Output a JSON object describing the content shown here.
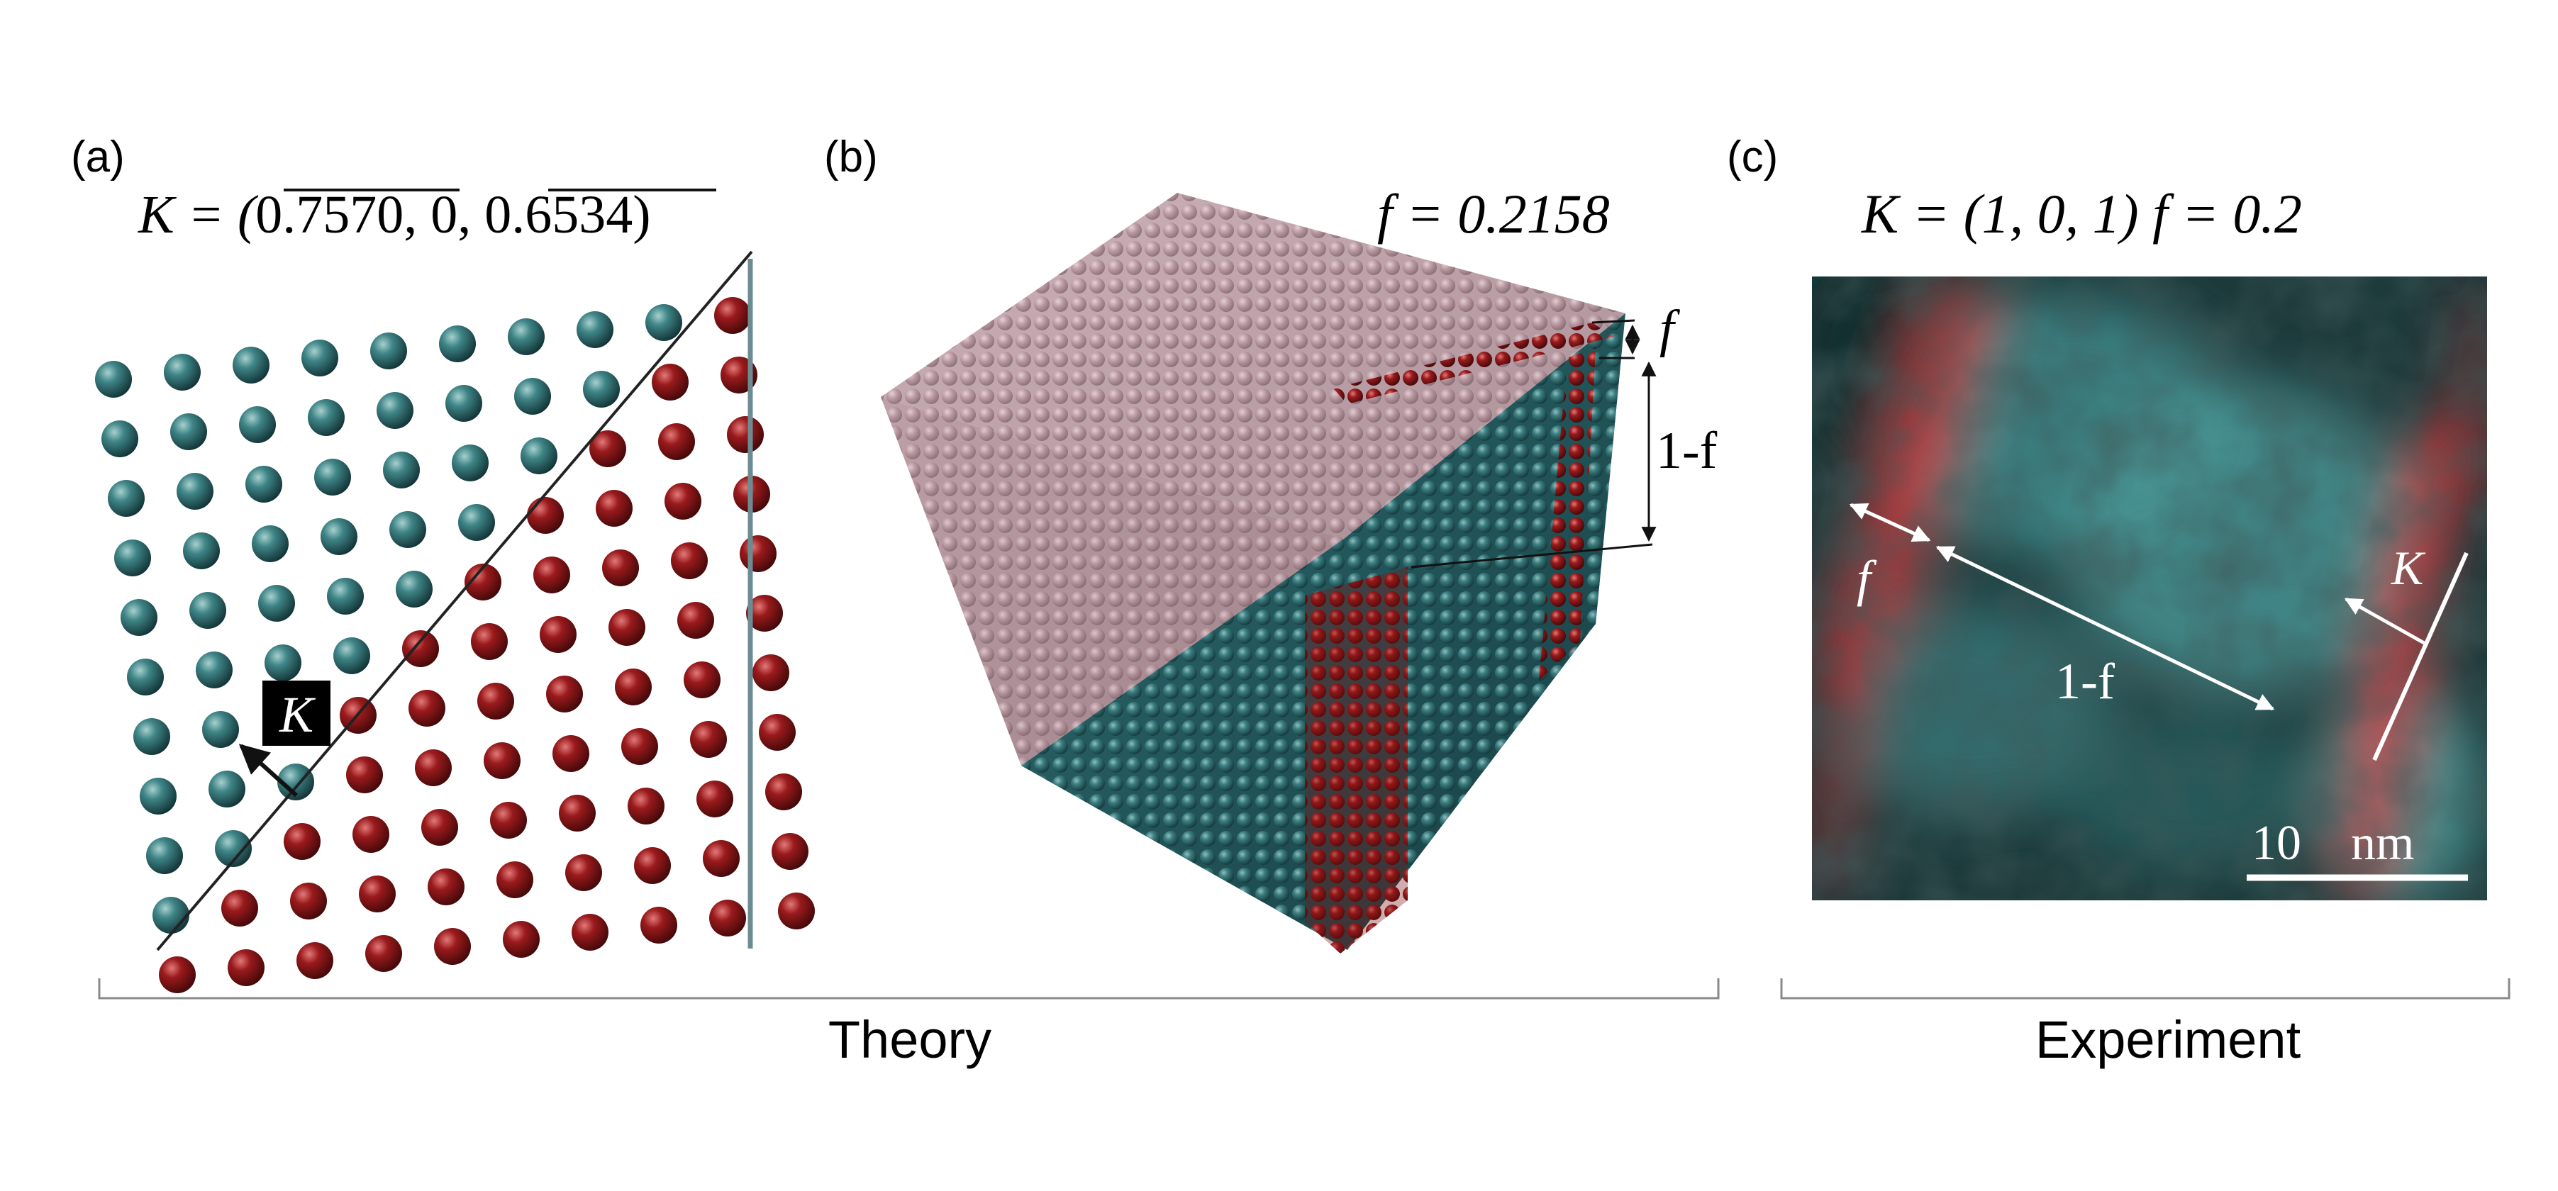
{
  "panel_a": {
    "label": "(a)",
    "eq_lhs": "K = (",
    "eq_v1": "0.7570",
    "eq_mid": ", 0, ",
    "eq_v2": "0.6534",
    "eq_rhs": ")",
    "k_label": "K"
  },
  "panel_b": {
    "label": "(b)",
    "f_equation": "f = 0.2158",
    "f_label": "f",
    "one_minus_f_label": "1-f"
  },
  "panel_c": {
    "label": "(c)",
    "equation": "K = (1, 0, 1)  f = 0.2",
    "f_label": "f",
    "one_minus_f_label": "1-f",
    "k_label": "K",
    "scalebar_value": "10",
    "scalebar_unit": "nm"
  },
  "groups": {
    "theory": "Theory",
    "experiment": "Experiment"
  },
  "colors": {
    "teal_atom": "#2f6f73",
    "red_atom": "#8a1518",
    "pink_atom": "#c4a3ac",
    "micrograph_bg": "#1d3a3b",
    "bracket": "#888888"
  }
}
